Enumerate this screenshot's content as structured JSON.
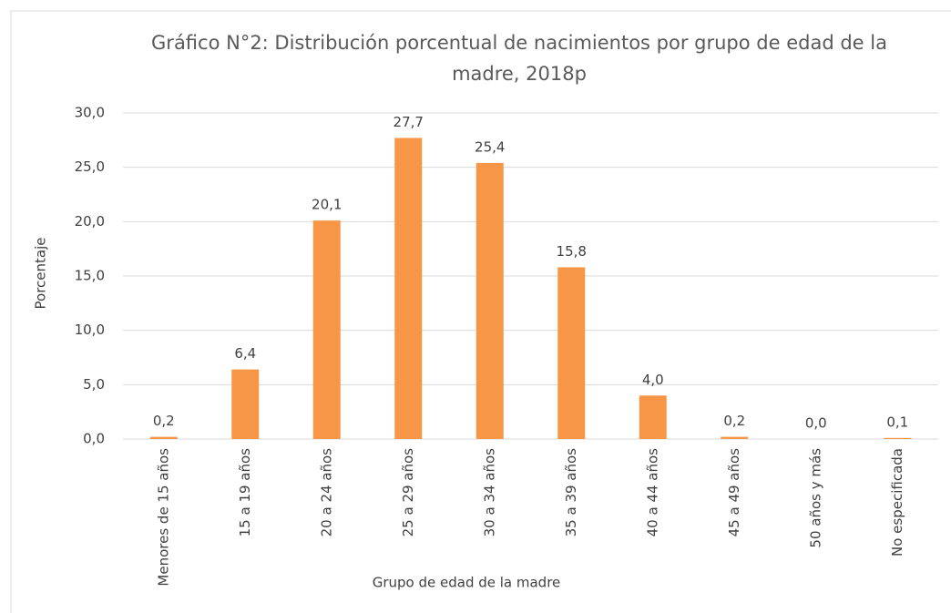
{
  "chart_data": {
    "type": "bar",
    "title": "Gráfico N°2: Distribución porcentual de nacimientos por grupo de edad de la madre, 2018p",
    "x_label": "Grupo de edad de la madre",
    "y_label": "Porcentaje",
    "categories": [
      "Menores de 15 años",
      "15 a 19 años",
      "20 a 24 años",
      "25 a 29 años",
      "30 a 34 años",
      "35 a 39 años",
      "40 a 44 años",
      "45 a 49 años",
      "50 años y más",
      "No especificada"
    ],
    "values": [
      0.2,
      6.4,
      20.1,
      27.7,
      25.4,
      15.8,
      4.0,
      0.2,
      0.0,
      0.1
    ],
    "value_labels": [
      "0,2",
      "6,4",
      "20,1",
      "27,7",
      "25,4",
      "15,8",
      "4,0",
      "0,2",
      "0,0",
      "0,1"
    ],
    "color": "#f79646",
    "ylim": [
      0,
      30
    ],
    "yticks": [
      {
        "value": 0,
        "label": "0,0"
      },
      {
        "value": 5,
        "label": "5,0"
      },
      {
        "value": 10,
        "label": "10,0"
      },
      {
        "value": 15,
        "label": "15,0"
      },
      {
        "value": 20,
        "label": "20,0"
      },
      {
        "value": 25,
        "label": "25,0"
      },
      {
        "value": 30,
        "label": "30,0"
      }
    ],
    "grid": true
  }
}
